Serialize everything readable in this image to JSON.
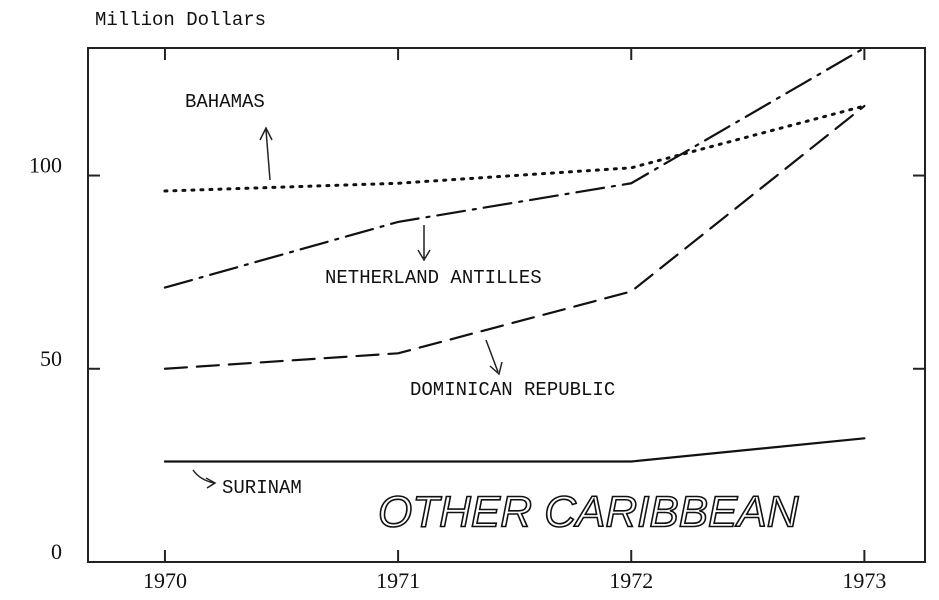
{
  "chart_data": {
    "type": "line",
    "title": "OTHER CARIBBEAN",
    "y_label": "Million Dollars",
    "x": [
      1970,
      1971,
      1972,
      1973
    ],
    "series": [
      {
        "name": "BAHAMAS",
        "color": "#111111",
        "dash": "dotted",
        "values": [
          96,
          98,
          102,
          118
        ]
      },
      {
        "name": "NETHERLAND ANTILLES",
        "color": "#111111",
        "dash": "dash-dot",
        "values": [
          71,
          88,
          98,
          133
        ]
      },
      {
        "name": "DOMINICAN REPUBLIC",
        "color": "#111111",
        "dash": "dashed",
        "values": [
          50,
          54,
          70,
          118
        ]
      },
      {
        "name": "SURINAM",
        "color": "#111111",
        "dash": "solid",
        "values": [
          26,
          26,
          26,
          32
        ]
      }
    ],
    "xlim": [
      1969.67,
      1973.26
    ],
    "xticks": [
      1970,
      1971,
      1972,
      1973
    ],
    "ylim": [
      0,
      133
    ],
    "yticks": [
      0,
      50,
      100
    ]
  }
}
